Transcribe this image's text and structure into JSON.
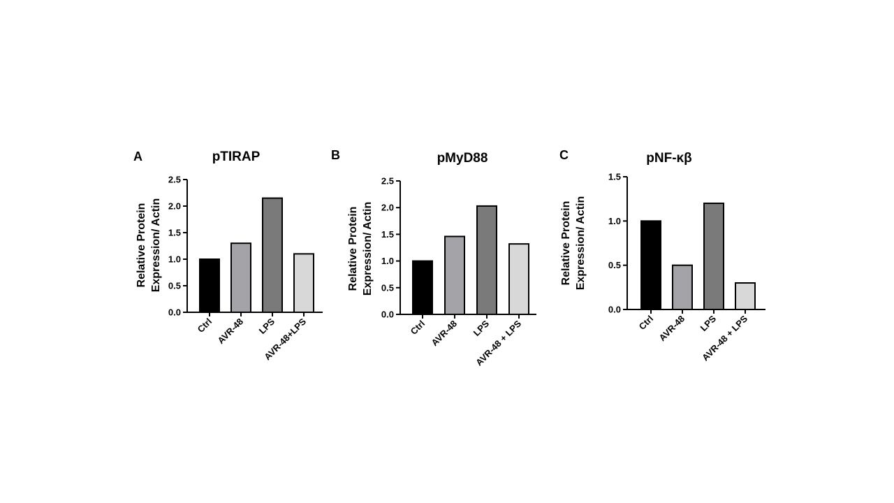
{
  "chart_data": [
    {
      "type": "bar",
      "panel_letter": "A",
      "title": "pTIRAP",
      "ylabel_lines": [
        "Relative Protein",
        "Expression/ Actin"
      ],
      "categories": [
        "Ctrl",
        "AVR-48",
        "LPS",
        "AVR-48+LPS"
      ],
      "values": [
        1.0,
        1.3,
        2.15,
        1.1
      ],
      "ylim": [
        0,
        2.5
      ],
      "yticks": [
        "0.0",
        "0.5",
        "1.0",
        "1.5",
        "2.0",
        "2.5"
      ],
      "bar_colors": [
        "#000000",
        "#a3a3a8",
        "#7a7a7a",
        "#d8d8d8"
      ],
      "grid": false
    },
    {
      "type": "bar",
      "panel_letter": "B",
      "title": "pMyD88",
      "ylabel_lines": [
        "Relative Protein",
        "Expression/ Actin"
      ],
      "categories": [
        "Ctrl",
        "AVR-48",
        "LPS",
        "AVR-48 + LPS"
      ],
      "values": [
        1.0,
        1.46,
        2.03,
        1.32
      ],
      "ylim": [
        0,
        2.5
      ],
      "yticks": [
        "0.0",
        "0.5",
        "1.0",
        "1.5",
        "2.0",
        "2.5"
      ],
      "bar_colors": [
        "#000000",
        "#a3a3a8",
        "#7a7a7a",
        "#d8d8d8"
      ],
      "grid": false
    },
    {
      "type": "bar",
      "panel_letter": "C",
      "title": "pNF-κβ",
      "ylabel_lines": [
        "Relative Protein",
        "Expression/ Actin"
      ],
      "categories": [
        "Ctrl",
        "AVR-48",
        "LPS",
        "AVR-48 + LPS"
      ],
      "values": [
        1.0,
        0.5,
        1.2,
        0.3
      ],
      "ylim": [
        0,
        1.5
      ],
      "yticks": [
        "0.0",
        "0.5",
        "1.0",
        "1.5"
      ],
      "bar_colors": [
        "#000000",
        "#a3a3a8",
        "#7a7a7a",
        "#d8d8d8"
      ],
      "grid": false
    }
  ]
}
